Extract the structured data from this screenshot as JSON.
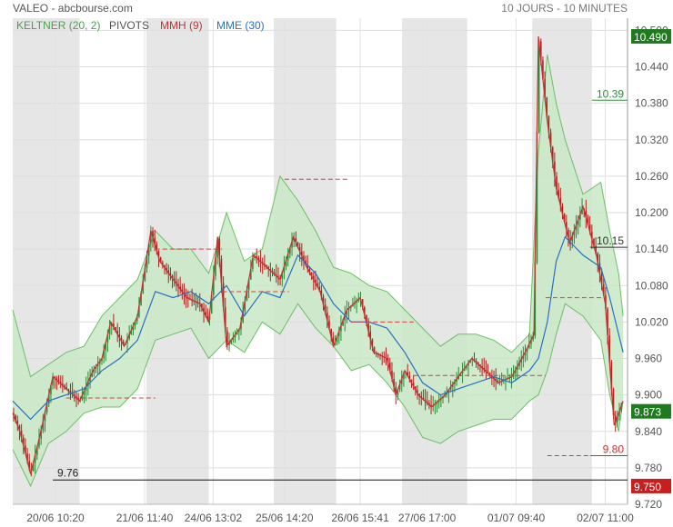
{
  "header": {
    "title": "VALEO - abcbourse.com",
    "period": "10 JOURS - 10 MINUTES"
  },
  "legend": [
    {
      "label": "KELTNER (20, 2)",
      "color": "#4aa14a"
    },
    {
      "label": "PIVOTS",
      "color": "#555555"
    },
    {
      "label": "MMH (9)",
      "color": "#c83232"
    },
    {
      "label": "MME (30)",
      "color": "#2a6fc4"
    }
  ],
  "colors": {
    "band_fill": "#c9e8c6",
    "band_line": "#6cbf66",
    "candle_up": "#2e8b3a",
    "candle_down": "#b22222",
    "mmh": "#c83232",
    "mme": "#2a6fc4",
    "pivot": "#d44040",
    "shade": "#e6e6e6"
  },
  "chart_data": {
    "type": "line",
    "title": "VALEO - abcbourse.com",
    "ylim": [
      9.72,
      10.52
    ],
    "y_ticks": [
      "10.500",
      "10.440",
      "10.380",
      "10.320",
      "10.260",
      "10.200",
      "10.140",
      "10.080",
      "10.020",
      "9.960",
      "9.900",
      "9.840",
      "9.780",
      "9.720"
    ],
    "x_ticks": [
      "20/06 10:20",
      "21/06 11:40",
      "24/06 13:02",
      "25/06 14:20",
      "26/06 15:41",
      "27/06 17:00",
      "01/07 09:40",
      "02/07 11:00"
    ],
    "grid": true,
    "series": [
      {
        "name": "MMH (9)",
        "x": [
          0,
          8,
          20,
          30,
          45,
          60,
          75,
          90,
          100,
          110,
          125,
          140,
          155,
          165,
          180,
          195,
          210,
          220,
          230,
          240,
          255,
          270,
          285,
          300,
          315,
          330,
          345,
          360,
          375,
          390,
          405,
          420,
          430,
          440,
          455,
          470,
          485,
          500,
          515,
          530,
          545,
          560,
          575,
          585,
          590,
          600,
          610,
          625,
          640,
          655,
          665,
          675,
          685
        ],
        "y": [
          9.87,
          9.84,
          9.77,
          9.83,
          9.93,
          9.91,
          9.89,
          9.94,
          9.96,
          10.02,
          9.98,
          10.03,
          10.17,
          10.12,
          10.09,
          10.06,
          10.05,
          10.02,
          10.16,
          9.98,
          10.01,
          10.13,
          10.11,
          10.09,
          10.16,
          10.11,
          10.07,
          9.98,
          10.04,
          10.06,
          9.97,
          9.96,
          9.9,
          9.94,
          9.9,
          9.88,
          9.9,
          9.93,
          9.96,
          9.94,
          9.92,
          9.93,
          9.97,
          10.0,
          10.49,
          10.35,
          10.24,
          10.15,
          10.21,
          10.13,
          10.05,
          9.85,
          9.89
        ]
      },
      {
        "name": "MME (30)",
        "x": [
          0,
          20,
          40,
          60,
          80,
          100,
          120,
          140,
          160,
          180,
          200,
          220,
          240,
          260,
          280,
          300,
          320,
          340,
          360,
          380,
          400,
          420,
          440,
          460,
          480,
          500,
          520,
          540,
          560,
          580,
          590,
          600,
          610,
          620,
          640,
          660,
          670,
          680,
          685
        ],
        "y": [
          9.89,
          9.86,
          9.89,
          9.9,
          9.91,
          9.94,
          9.96,
          9.99,
          10.07,
          10.06,
          10.07,
          10.05,
          10.08,
          10.03,
          10.07,
          10.06,
          10.13,
          10.1,
          10.05,
          10.02,
          10.02,
          10.01,
          9.97,
          9.92,
          9.9,
          9.91,
          9.92,
          9.93,
          9.92,
          9.94,
          9.96,
          10.02,
          10.12,
          10.16,
          10.13,
          10.11,
          10.06,
          10.0,
          9.97
        ]
      },
      {
        "name": "Keltner upper",
        "x": [
          0,
          20,
          40,
          60,
          80,
          100,
          120,
          140,
          160,
          180,
          200,
          220,
          240,
          260,
          280,
          300,
          320,
          340,
          360,
          380,
          400,
          420,
          440,
          460,
          480,
          500,
          520,
          540,
          560,
          580,
          590,
          600,
          610,
          620,
          640,
          660,
          670,
          680,
          685
        ],
        "y": [
          10.04,
          9.93,
          9.95,
          9.97,
          9.98,
          10.03,
          10.06,
          10.09,
          10.17,
          10.14,
          10.14,
          10.1,
          10.2,
          10.12,
          10.14,
          10.26,
          10.22,
          10.17,
          10.11,
          10.1,
          10.08,
          10.07,
          10.04,
          10.01,
          9.98,
          10.0,
          10.0,
          9.99,
          9.97,
          10.0,
          10.3,
          10.46,
          10.38,
          10.32,
          10.23,
          10.25,
          10.17,
          10.1,
          10.03
        ]
      },
      {
        "name": "Keltner lower",
        "x": [
          0,
          20,
          40,
          60,
          80,
          100,
          120,
          140,
          160,
          180,
          200,
          220,
          240,
          260,
          280,
          300,
          320,
          340,
          360,
          380,
          400,
          420,
          440,
          460,
          480,
          500,
          520,
          540,
          560,
          580,
          590,
          600,
          610,
          620,
          640,
          660,
          670,
          680,
          685
        ],
        "y": [
          9.81,
          9.75,
          9.82,
          9.84,
          9.87,
          9.88,
          9.88,
          9.91,
          9.99,
          10.0,
          10.01,
          9.96,
          9.99,
          9.97,
          10.02,
          10.0,
          10.05,
          10.01,
          9.98,
          9.94,
          9.95,
          9.92,
          9.88,
          9.83,
          9.82,
          9.84,
          9.85,
          9.86,
          9.86,
          9.89,
          9.9,
          9.94,
          10.0,
          10.05,
          10.03,
          9.99,
          9.9,
          9.84,
          9.89
        ]
      }
    ],
    "pivots": [
      {
        "value": 9.895,
        "from": 60,
        "to": 160
      },
      {
        "value": 10.14,
        "from": 160,
        "to": 235
      },
      {
        "value": 10.07,
        "from": 235,
        "to": 310
      },
      {
        "value": 10.255,
        "from": 305,
        "to": 378
      },
      {
        "value": 10.02,
        "from": 380,
        "to": 450
      },
      {
        "value": 9.932,
        "from": 450,
        "to": 598
      },
      {
        "value": 10.06,
        "from": 598,
        "to": 665
      },
      {
        "value": 9.8,
        "from": 600,
        "to": 690
      }
    ],
    "support_line": {
      "value": 9.76,
      "label": "9.76"
    },
    "annotations": [
      {
        "label": "10.39",
        "value": 10.385,
        "color": "#2e8b3a"
      },
      {
        "label": "10.15",
        "value": 10.143,
        "color": "#333333"
      },
      {
        "label": "9.80",
        "value": 9.8,
        "color": "#c83232"
      }
    ],
    "price_tags": [
      {
        "label": "10.490",
        "value": 10.49,
        "color": "#1e7b1e"
      },
      {
        "label": "9.873",
        "value": 9.873,
        "color": "#1e7b1e"
      },
      {
        "label": "9.750",
        "value": 9.75,
        "color": "#c81e1e"
      }
    ]
  }
}
